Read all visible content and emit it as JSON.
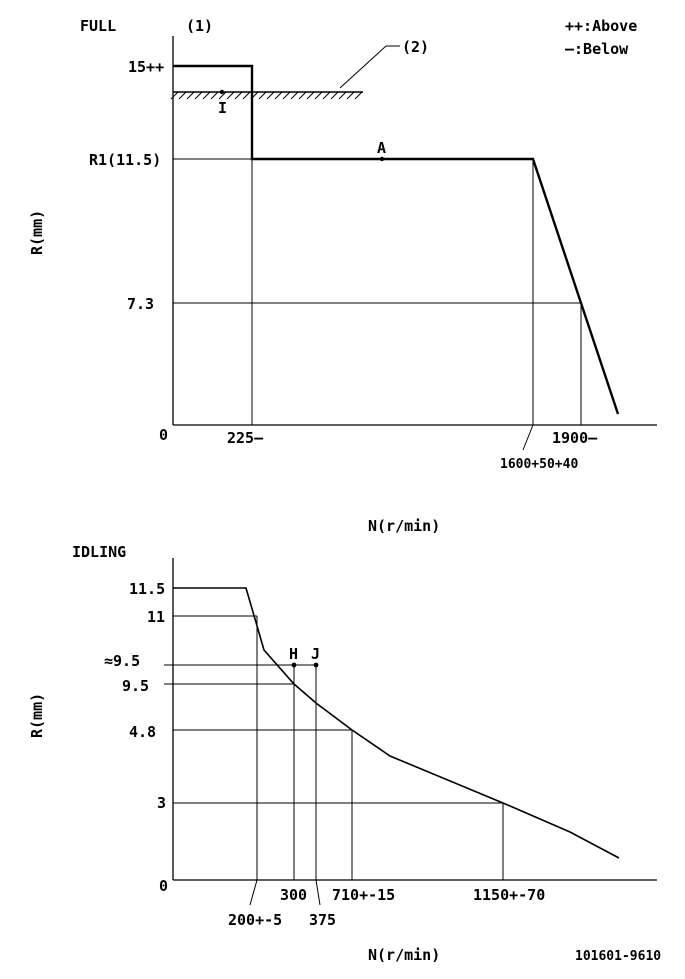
{
  "legend": {
    "above": "++:Above",
    "below": "—:Below"
  },
  "footer_code": "101601-9610",
  "chart_data": [
    {
      "type": "line",
      "title": "FULL",
      "marker": "(1)",
      "xlabel": "N(r/min)",
      "ylabel": "R(mm)",
      "y_ticks": [
        "15++",
        "R1(11.5)",
        "7.3",
        "0"
      ],
      "x_ticks": [
        "225—",
        "1600+50+40",
        "1900—"
      ],
      "series": [
        {
          "x": [
            0,
            225,
            225,
            1600,
            1900,
            2000
          ],
          "y": [
            15,
            15,
            11.5,
            11.5,
            7.3,
            1
          ]
        }
      ],
      "limit_line": {
        "label": "(2)",
        "x": [
          0,
          530
        ],
        "y": [
          14.2,
          14.2
        ]
      },
      "points": [
        {
          "label": "I",
          "x": 135,
          "y": 14.2
        },
        {
          "label": "A",
          "x": 600,
          "y": 11.5
        }
      ]
    },
    {
      "type": "line",
      "title": "IDLING",
      "xlabel": "N(r/min)",
      "ylabel": "R(mm)",
      "y_ticks": [
        "11.5",
        "11",
        "≈9.5",
        "9.5",
        "4.8",
        "3",
        "0"
      ],
      "x_ticks": [
        "200+-5",
        "300",
        "375",
        "710+-15",
        "1150+-70"
      ],
      "series": [
        {
          "x": [
            0,
            175,
            220,
            255,
            300,
            375,
            560,
            1150,
            1360,
            1540
          ],
          "y": [
            11.5,
            11.5,
            11,
            9.9,
            9.6,
            9.0,
            7.2,
            3,
            1.8,
            0.6
          ]
        }
      ],
      "points": [
        {
          "label": "H",
          "x": 300,
          "y": 9.5
        },
        {
          "label": "J",
          "x": 375,
          "y": 9.5
        }
      ]
    }
  ]
}
